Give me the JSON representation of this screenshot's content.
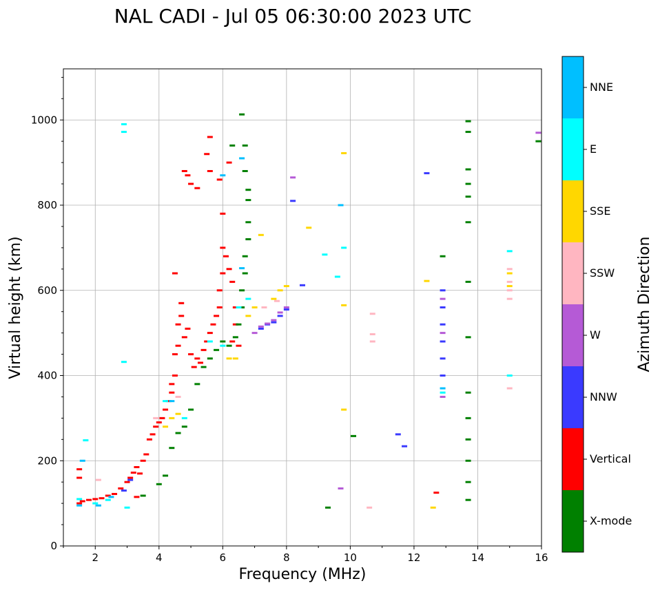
{
  "chart_data": {
    "type": "scatter",
    "title": "NAL CADI - Jul 05 06:30:00 2023 UTC",
    "xlabel": "Frequency (MHz)",
    "ylabel": "Virtual height (km)",
    "xlim": [
      1,
      16
    ],
    "ylim": [
      0,
      1120
    ],
    "xticks": [
      2,
      4,
      6,
      8,
      10,
      12,
      14,
      16
    ],
    "yticks": [
      0,
      200,
      400,
      600,
      800,
      1000
    ],
    "grid": true,
    "colorbar": {
      "label": "Azimuth Direction",
      "categories": [
        {
          "name": "X-mode",
          "color": "#008000"
        },
        {
          "name": "Vertical",
          "color": "#ff0000"
        },
        {
          "name": "NNW",
          "color": "#3a3aff"
        },
        {
          "name": "W",
          "color": "#b55ad6"
        },
        {
          "name": "SSW",
          "color": "#ffb6c1"
        },
        {
          "name": "SSE",
          "color": "#ffd700"
        },
        {
          "name": "E",
          "color": "#00ffff"
        },
        {
          "name": "NNE",
          "color": "#00bfff"
        }
      ]
    },
    "series": [
      {
        "name": "Vertical",
        "points": [
          [
            1.5,
            100
          ],
          [
            1.6,
            105
          ],
          [
            1.8,
            108
          ],
          [
            2.0,
            110
          ],
          [
            2.2,
            112
          ],
          [
            2.4,
            118
          ],
          [
            2.6,
            122
          ],
          [
            2.8,
            135
          ],
          [
            3.0,
            150
          ],
          [
            3.1,
            160
          ],
          [
            3.2,
            172
          ],
          [
            3.3,
            185
          ],
          [
            3.4,
            170
          ],
          [
            3.5,
            200
          ],
          [
            3.6,
            215
          ],
          [
            3.7,
            250
          ],
          [
            3.8,
            262
          ],
          [
            3.9,
            280
          ],
          [
            4.0,
            290
          ],
          [
            4.1,
            300
          ],
          [
            4.2,
            320
          ],
          [
            4.3,
            340
          ],
          [
            4.4,
            360
          ],
          [
            4.4,
            380
          ],
          [
            4.5,
            400
          ],
          [
            4.5,
            450
          ],
          [
            4.6,
            470
          ],
          [
            4.6,
            520
          ],
          [
            4.7,
            540
          ],
          [
            4.7,
            570
          ],
          [
            4.8,
            490
          ],
          [
            4.9,
            510
          ],
          [
            5.0,
            450
          ],
          [
            5.1,
            420
          ],
          [
            5.2,
            440
          ],
          [
            5.3,
            430
          ],
          [
            5.4,
            460
          ],
          [
            5.5,
            480
          ],
          [
            5.6,
            500
          ],
          [
            5.7,
            520
          ],
          [
            5.8,
            540
          ],
          [
            5.9,
            560
          ],
          [
            5.9,
            600
          ],
          [
            6.0,
            640
          ],
          [
            6.0,
            700
          ],
          [
            6.1,
            680
          ],
          [
            6.2,
            650
          ],
          [
            6.0,
            780
          ],
          [
            5.9,
            860
          ],
          [
            5.6,
            880
          ],
          [
            5.5,
            920
          ],
          [
            5.6,
            960
          ],
          [
            5.2,
            840
          ],
          [
            5.0,
            850
          ],
          [
            4.9,
            870
          ],
          [
            4.8,
            880
          ],
          [
            6.2,
            900
          ],
          [
            6.3,
            620
          ],
          [
            6.4,
            560
          ],
          [
            6.4,
            520
          ],
          [
            6.3,
            480
          ],
          [
            6.5,
            470
          ],
          [
            4.5,
            640
          ],
          [
            1.5,
            180
          ],
          [
            1.5,
            160
          ],
          [
            12.7,
            125
          ],
          [
            3.3,
            115
          ]
        ]
      },
      {
        "name": "X-mode",
        "points": [
          [
            3.5,
            118
          ],
          [
            4.0,
            145
          ],
          [
            4.2,
            165
          ],
          [
            4.4,
            230
          ],
          [
            4.6,
            265
          ],
          [
            4.8,
            280
          ],
          [
            5.0,
            320
          ],
          [
            5.2,
            380
          ],
          [
            5.4,
            420
          ],
          [
            5.6,
            440
          ],
          [
            5.8,
            460
          ],
          [
            6.0,
            480
          ],
          [
            6.2,
            470
          ],
          [
            6.4,
            490
          ],
          [
            6.5,
            520
          ],
          [
            6.6,
            560
          ],
          [
            6.6,
            600
          ],
          [
            6.7,
            640
          ],
          [
            6.7,
            680
          ],
          [
            6.8,
            720
          ],
          [
            6.8,
            760
          ],
          [
            6.6,
            1013
          ],
          [
            6.7,
            940
          ],
          [
            6.7,
            880
          ],
          [
            6.8,
            836
          ],
          [
            6.8,
            812
          ],
          [
            6.3,
            940
          ],
          [
            9.3,
            90
          ],
          [
            10.1,
            258
          ],
          [
            13.7,
            360
          ],
          [
            13.7,
            300
          ],
          [
            13.7,
            250
          ],
          [
            13.7,
            200
          ],
          [
            13.7,
            150
          ],
          [
            13.7,
            108
          ],
          [
            13.7,
            490
          ],
          [
            13.7,
            620
          ],
          [
            13.7,
            760
          ],
          [
            13.7,
            820
          ],
          [
            13.7,
            850
          ],
          [
            13.7,
            884
          ],
          [
            13.7,
            972
          ],
          [
            13.7,
            997
          ],
          [
            15.9,
            950
          ],
          [
            12.9,
            680
          ]
        ]
      },
      {
        "name": "NNW",
        "points": [
          [
            2.9,
            130
          ],
          [
            3.1,
            155
          ],
          [
            7.2,
            510
          ],
          [
            7.4,
            520
          ],
          [
            7.6,
            525
          ],
          [
            7.8,
            540
          ],
          [
            8.0,
            555
          ],
          [
            8.5,
            612
          ],
          [
            8.2,
            810
          ],
          [
            11.5,
            262
          ],
          [
            11.7,
            234
          ],
          [
            12.4,
            875
          ],
          [
            12.9,
            600
          ],
          [
            12.9,
            560
          ],
          [
            12.9,
            520
          ],
          [
            12.9,
            480
          ],
          [
            12.9,
            440
          ],
          [
            12.9,
            400
          ]
        ]
      },
      {
        "name": "W",
        "points": [
          [
            7.0,
            500
          ],
          [
            7.2,
            515
          ],
          [
            7.4,
            522
          ],
          [
            7.6,
            530
          ],
          [
            7.8,
            548
          ],
          [
            8.0,
            560
          ],
          [
            8.2,
            865
          ],
          [
            9.7,
            135
          ],
          [
            12.9,
            350
          ],
          [
            12.9,
            580
          ],
          [
            12.9,
            500
          ],
          [
            15.9,
            970
          ]
        ]
      },
      {
        "name": "SSW",
        "points": [
          [
            2.1,
            155
          ],
          [
            3.9,
            300
          ],
          [
            4.6,
            350
          ],
          [
            7.3,
            560
          ],
          [
            7.7,
            575
          ],
          [
            10.6,
            90
          ],
          [
            10.7,
            480
          ],
          [
            10.7,
            497
          ],
          [
            10.7,
            545
          ],
          [
            15.0,
            370
          ],
          [
            15.0,
            580
          ],
          [
            15.0,
            600
          ],
          [
            15.0,
            620
          ],
          [
            15.0,
            650
          ]
        ]
      },
      {
        "name": "SSE",
        "points": [
          [
            4.2,
            280
          ],
          [
            4.4,
            300
          ],
          [
            4.6,
            310
          ],
          [
            6.2,
            440
          ],
          [
            6.4,
            440
          ],
          [
            6.8,
            540
          ],
          [
            7.0,
            560
          ],
          [
            7.2,
            730
          ],
          [
            7.6,
            580
          ],
          [
            7.8,
            600
          ],
          [
            8.0,
            610
          ],
          [
            8.7,
            747
          ],
          [
            9.8,
            320
          ],
          [
            9.8,
            565
          ],
          [
            9.8,
            922
          ],
          [
            12.4,
            622
          ],
          [
            12.6,
            90
          ],
          [
            15.0,
            610
          ],
          [
            15.0,
            640
          ]
        ]
      },
      {
        "name": "E",
        "points": [
          [
            1.5,
            110
          ],
          [
            2.0,
            100
          ],
          [
            2.4,
            108
          ],
          [
            3.0,
            90
          ],
          [
            2.9,
            432
          ],
          [
            2.9,
            972
          ],
          [
            2.9,
            990
          ],
          [
            1.7,
            248
          ],
          [
            4.2,
            340
          ],
          [
            4.8,
            300
          ],
          [
            5.6,
            480
          ],
          [
            6.0,
            470
          ],
          [
            6.5,
            560
          ],
          [
            6.8,
            580
          ],
          [
            9.2,
            684
          ],
          [
            9.6,
            632
          ],
          [
            9.8,
            700
          ],
          [
            12.9,
            360
          ],
          [
            15.0,
            400
          ],
          [
            15.0,
            692
          ]
        ]
      },
      {
        "name": "NNE",
        "points": [
          [
            1.5,
            95
          ],
          [
            1.6,
            200
          ],
          [
            2.1,
            95
          ],
          [
            2.5,
            115
          ],
          [
            4.4,
            340
          ],
          [
            6.6,
            652
          ],
          [
            6.0,
            870
          ],
          [
            6.6,
            910
          ],
          [
            9.7,
            800
          ],
          [
            12.9,
            370
          ]
        ]
      }
    ]
  }
}
